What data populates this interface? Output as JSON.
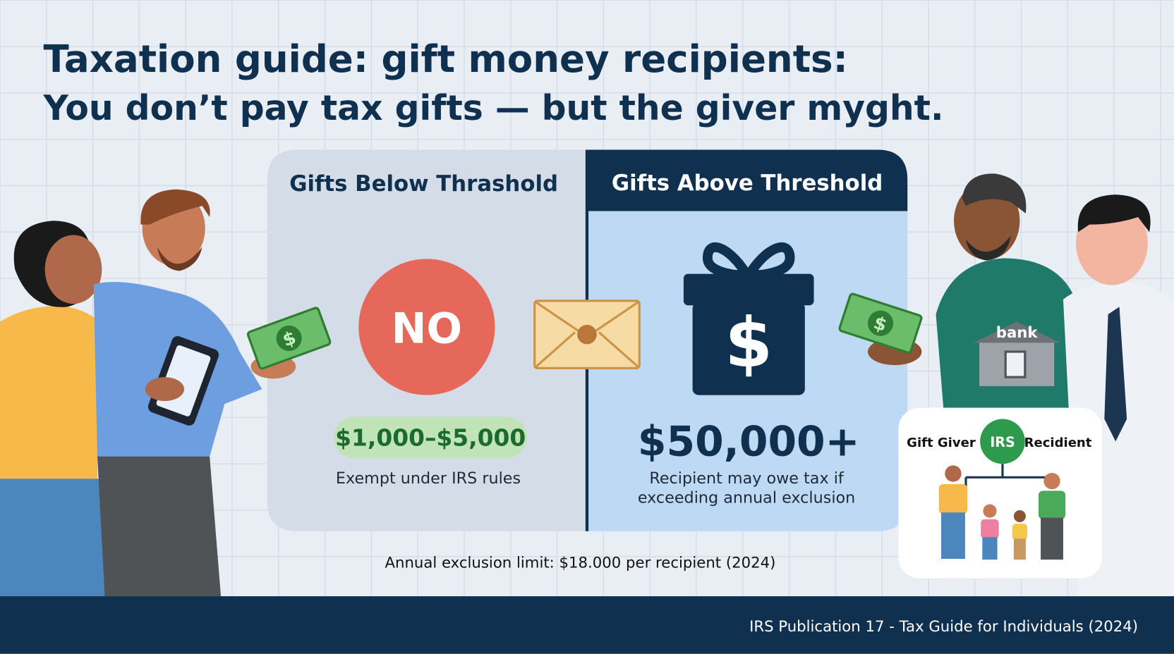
{
  "header": {
    "title": "Taxation guide: gift money recipients:",
    "subtitle": "You don’t pay tax gifts — but the giver myght."
  },
  "panels": [
    {
      "heading": "Gifts Below Thrashold",
      "badge": "NO",
      "amount": "$1,000–$5,000",
      "note_lines": [
        "Exempt under IRS rules"
      ]
    },
    {
      "heading": "Gifts Above Threshold",
      "icon": "$",
      "amount": "$50,000+",
      "note_lines": [
        "Recipient may owe tax if",
        "exceeding annual exclusion"
      ]
    }
  ],
  "annual_note": "Annual exclusion limit: $18.000 per recipient (2024)",
  "bill_symbol": "$",
  "bank_label": "bank",
  "diagram": {
    "giver": "Gift Giver",
    "center": "IRS",
    "recipient": "Recidient"
  },
  "footer": "IRS Publication 17 - Tax Guide for Individuals (2024)"
}
